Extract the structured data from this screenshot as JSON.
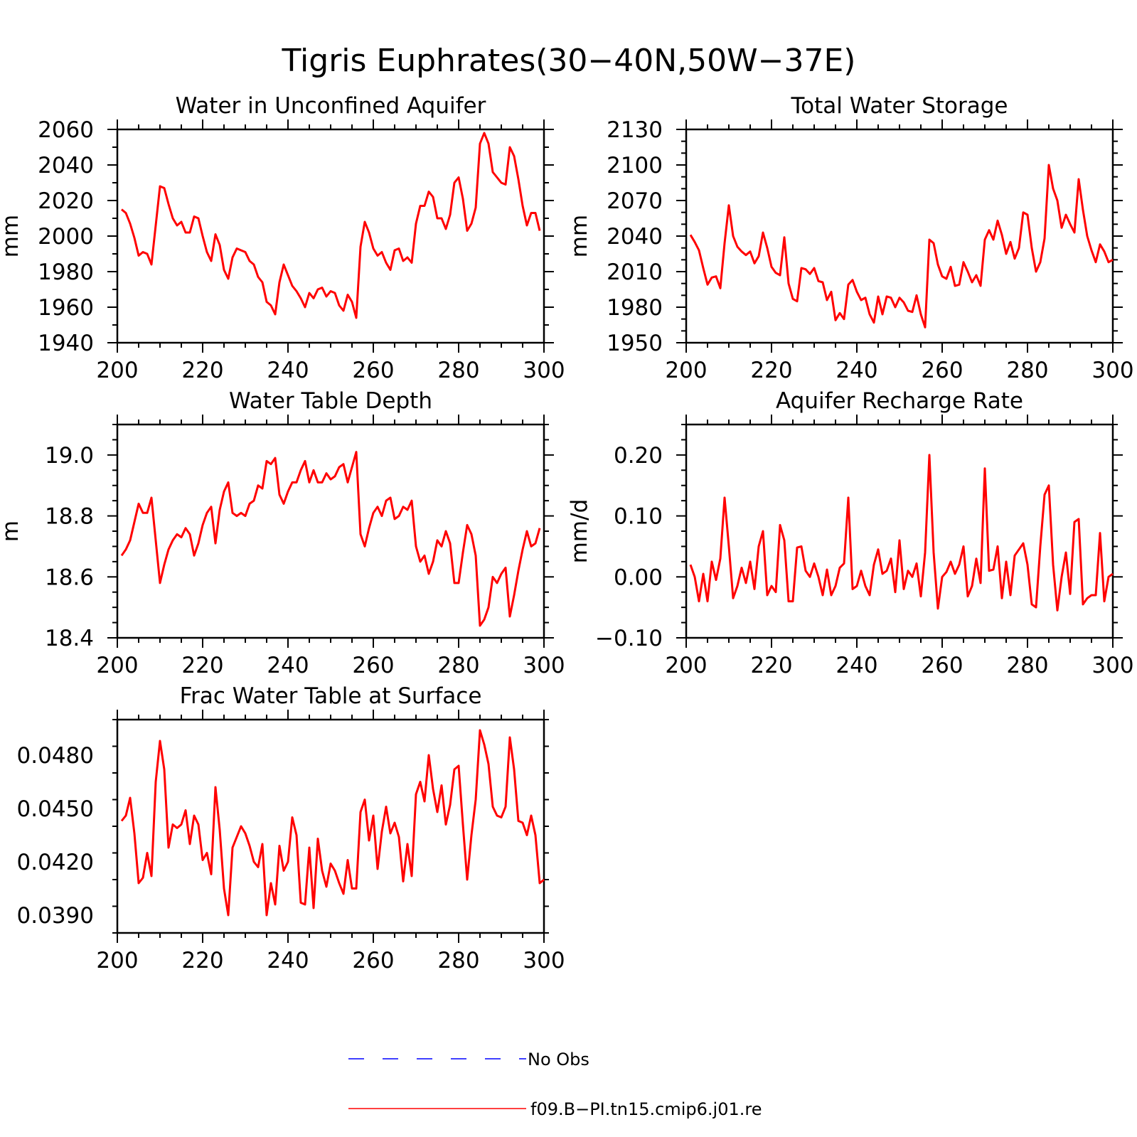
{
  "figure": {
    "title": "Tigris Euphrates(30−40N,50W−37E)",
    "legend": [
      {
        "label": "No Obs",
        "color": "#0000ff",
        "style": "dashed"
      },
      {
        "label": "f09.B−PI.tn15.cmip6.j01.re",
        "color": "#ff0000",
        "style": "solid"
      }
    ]
  },
  "chart_data": [
    {
      "type": "line",
      "title": "Water in Unconfined Aquifer",
      "xlabel": "",
      "ylabel": "mm",
      "xlim": [
        200,
        300
      ],
      "ylim": [
        1940,
        2060
      ],
      "xticks": [
        200,
        220,
        240,
        260,
        280,
        300
      ],
      "xtick_labels": [
        "200",
        "220",
        "240",
        "260",
        "280",
        "300"
      ],
      "yticks": [
        1940,
        1960,
        1980,
        2000,
        2020,
        2040,
        2060
      ],
      "ytick_labels": [
        "1940",
        "1960",
        "1980",
        "2000",
        "2020",
        "2040",
        "2060"
      ],
      "grid": false,
      "series": [
        {
          "name": "f09.B−PI.tn15.cmip6.j01.re",
          "color": "#ff0000",
          "x_start": 201,
          "values": [
            2015,
            2013,
            2007,
            1999,
            1989,
            1991,
            1990,
            1984,
            2006,
            2028,
            2027,
            2018,
            2010,
            2006,
            2008,
            2002,
            2002,
            2011,
            2010,
            2000,
            1991,
            1986,
            2001,
            1995,
            1981,
            1976,
            1988,
            1993,
            1992,
            1991,
            1986,
            1984,
            1977,
            1974,
            1963,
            1961,
            1956,
            1974,
            1984,
            1978,
            1972,
            1969,
            1965,
            1960,
            1968,
            1965,
            1970,
            1971,
            1966,
            1969,
            1968,
            1961,
            1958,
            1967,
            1963,
            1954,
            1994,
            2008,
            2002,
            1993,
            1989,
            1991,
            1985,
            1981,
            1992,
            1993,
            1986,
            1988,
            1985,
            2007,
            2017,
            2017,
            2025,
            2022,
            2010,
            2010,
            2004,
            2012,
            2030,
            2033,
            2021,
            2003,
            2007,
            2016,
            2052,
            2058,
            2052,
            2036,
            2033,
            2030,
            2029,
            2050,
            2045,
            2032,
            2017,
            2006,
            2013,
            2013,
            2003
          ]
        }
      ]
    },
    {
      "type": "line",
      "title": "Total Water Storage",
      "xlabel": "",
      "ylabel": "mm",
      "xlim": [
        200,
        300
      ],
      "ylim": [
        1950,
        2130
      ],
      "xticks": [
        200,
        220,
        240,
        260,
        280,
        300
      ],
      "xtick_labels": [
        "200",
        "220",
        "240",
        "260",
        "280",
        "300"
      ],
      "yticks": [
        1950,
        1980,
        2010,
        2040,
        2070,
        2100,
        2130
      ],
      "ytick_labels": [
        "1950",
        "1980",
        "2010",
        "2040",
        "2070",
        "2100",
        "2130"
      ],
      "grid": false,
      "series": [
        {
          "name": "f09.B−PI.tn15.cmip6.j01.re",
          "color": "#ff0000",
          "x_start": 201,
          "values": [
            2041,
            2035,
            2028,
            2013,
            1999,
            2005,
            2006,
            1996,
            2034,
            2066,
            2040,
            2031,
            2027,
            2024,
            2027,
            2017,
            2023,
            2043,
            2030,
            2014,
            2009,
            2007,
            2039,
            2000,
            1987,
            1985,
            2013,
            2012,
            2008,
            2013,
            2002,
            2001,
            1986,
            1993,
            1969,
            1975,
            1970,
            1999,
            2003,
            1993,
            1986,
            1988,
            1974,
            1967,
            1989,
            1974,
            1989,
            1988,
            1980,
            1988,
            1984,
            1977,
            1976,
            1990,
            1974,
            1963,
            2037,
            2034,
            2016,
            2006,
            2004,
            2014,
            1998,
            1999,
            2018,
            2010,
            2001,
            2007,
            1998,
            2037,
            2045,
            2037,
            2053,
            2041,
            2025,
            2035,
            2021,
            2030,
            2060,
            2058,
            2030,
            2010,
            2018,
            2038,
            2100,
            2080,
            2070,
            2047,
            2058,
            2050,
            2043,
            2088,
            2062,
            2040,
            2028,
            2018,
            2033,
            2027,
            2018,
            2020
          ]
        }
      ]
    },
    {
      "type": "line",
      "title": "Water Table Depth",
      "xlabel": "",
      "ylabel": "m",
      "xlim": [
        200,
        300
      ],
      "ylim": [
        18.4,
        19.1
      ],
      "xticks": [
        200,
        220,
        240,
        260,
        280,
        300
      ],
      "xtick_labels": [
        "200",
        "220",
        "240",
        "260",
        "280",
        "300"
      ],
      "yticks": [
        18.4,
        18.6,
        18.8,
        19.0
      ],
      "ytick_labels": [
        "18.4",
        "18.6",
        "18.8",
        "19.0"
      ],
      "grid": false,
      "series": [
        {
          "name": "f09.B−PI.tn15.cmip6.j01.re",
          "color": "#ff0000",
          "x_start": 201,
          "values": [
            18.67,
            18.69,
            18.72,
            18.78,
            18.84,
            18.81,
            18.81,
            18.86,
            18.72,
            18.58,
            18.64,
            18.69,
            18.72,
            18.74,
            18.73,
            18.76,
            18.74,
            18.67,
            18.71,
            18.77,
            18.81,
            18.83,
            18.71,
            18.82,
            18.88,
            18.91,
            18.81,
            18.8,
            18.81,
            18.8,
            18.84,
            18.85,
            18.9,
            18.89,
            18.98,
            18.97,
            18.99,
            18.87,
            18.84,
            18.88,
            18.91,
            18.91,
            18.95,
            18.98,
            18.91,
            18.95,
            18.91,
            18.91,
            18.94,
            18.92,
            18.93,
            18.96,
            18.97,
            18.91,
            18.96,
            19.01,
            18.74,
            18.7,
            18.76,
            18.81,
            18.83,
            18.8,
            18.85,
            18.86,
            18.79,
            18.8,
            18.83,
            18.82,
            18.85,
            18.7,
            18.65,
            18.67,
            18.61,
            18.65,
            18.72,
            18.7,
            18.75,
            18.71,
            18.58,
            18.58,
            18.68,
            18.77,
            18.74,
            18.67,
            18.44,
            18.46,
            18.5,
            18.6,
            18.58,
            18.61,
            18.63,
            18.47,
            18.54,
            18.62,
            18.69,
            18.75,
            18.7,
            18.71,
            18.76
          ]
        }
      ]
    },
    {
      "type": "line",
      "title": "Aquifer Recharge Rate",
      "xlabel": "",
      "ylabel": "mm/d",
      "xlim": [
        200,
        300
      ],
      "ylim": [
        -0.1,
        0.25
      ],
      "xticks": [
        200,
        220,
        240,
        260,
        280,
        300
      ],
      "xtick_labels": [
        "200",
        "220",
        "240",
        "260",
        "280",
        "300"
      ],
      "yticks": [
        -0.1,
        0.0,
        0.1,
        0.2
      ],
      "ytick_labels": [
        "−0.10",
        "0.00",
        "0.10",
        "0.20"
      ],
      "grid": false,
      "series": [
        {
          "name": "f09.B−PI.tn15.cmip6.j01.re",
          "color": "#ff0000",
          "x_start": 201,
          "values": [
            0.02,
            0.0,
            -0.04,
            0.005,
            -0.04,
            0.025,
            -0.005,
            0.03,
            0.13,
            0.05,
            -0.035,
            -0.015,
            0.015,
            -0.01,
            0.025,
            -0.02,
            0.05,
            0.075,
            -0.03,
            -0.015,
            -0.025,
            0.085,
            0.06,
            -0.04,
            -0.04,
            0.048,
            0.05,
            0.01,
            0.0,
            0.022,
            0.0,
            -0.03,
            0.012,
            -0.03,
            -0.015,
            0.015,
            0.022,
            0.13,
            -0.02,
            -0.015,
            0.01,
            -0.015,
            -0.03,
            0.02,
            0.045,
            0.005,
            0.01,
            0.03,
            -0.025,
            0.06,
            -0.02,
            0.01,
            0.0,
            0.022,
            -0.032,
            0.04,
            0.2,
            0.04,
            -0.052,
            0.0,
            0.008,
            0.025,
            0.005,
            0.02,
            0.05,
            -0.032,
            -0.015,
            0.03,
            -0.01,
            0.178,
            0.01,
            0.012,
            0.05,
            -0.035,
            0.025,
            -0.03,
            0.035,
            0.045,
            0.055,
            0.02,
            -0.045,
            -0.05,
            0.05,
            0.135,
            0.15,
            0.02,
            -0.055,
            0.0,
            0.04,
            -0.028,
            0.09,
            0.095,
            -0.045,
            -0.035,
            -0.03,
            -0.03,
            0.072,
            -0.04,
            0.0,
            0.005
          ]
        }
      ]
    },
    {
      "type": "line",
      "title": "Frac Water Table at Surface",
      "xlabel": "",
      "ylabel": "",
      "xlim": [
        200,
        300
      ],
      "ylim": [
        0.038,
        0.05
      ],
      "xticks": [
        200,
        220,
        240,
        260,
        280,
        300
      ],
      "xtick_labels": [
        "200",
        "220",
        "240",
        "260",
        "280",
        "300"
      ],
      "yticks": [
        0.039,
        0.042,
        0.045,
        0.048
      ],
      "ytick_labels": [
        "0.0390",
        "0.0420",
        "0.0450",
        "0.0480"
      ],
      "grid": false,
      "series": [
        {
          "name": "f09.B−PI.tn15.cmip6.j01.re",
          "color": "#ff0000",
          "x_start": 201,
          "values": [
            0.0443,
            0.0446,
            0.0456,
            0.0436,
            0.0408,
            0.0411,
            0.0425,
            0.0412,
            0.0465,
            0.0488,
            0.0472,
            0.0428,
            0.0441,
            0.0439,
            0.0441,
            0.0449,
            0.043,
            0.0446,
            0.0441,
            0.0421,
            0.0425,
            0.0413,
            0.0462,
            0.0438,
            0.0405,
            0.039,
            0.0428,
            0.0434,
            0.044,
            0.0436,
            0.0429,
            0.042,
            0.0417,
            0.043,
            0.039,
            0.0408,
            0.0396,
            0.0429,
            0.0415,
            0.042,
            0.0445,
            0.0435,
            0.0397,
            0.0396,
            0.0428,
            0.0394,
            0.0433,
            0.0415,
            0.0406,
            0.0419,
            0.0415,
            0.0408,
            0.0402,
            0.0421,
            0.0405,
            0.0405,
            0.0448,
            0.0455,
            0.0432,
            0.0446,
            0.0416,
            0.0437,
            0.0451,
            0.0436,
            0.0442,
            0.0434,
            0.0409,
            0.043,
            0.0412,
            0.0458,
            0.0465,
            0.0454,
            0.048,
            0.0461,
            0.0448,
            0.0463,
            0.0441,
            0.0452,
            0.0472,
            0.0474,
            0.0441,
            0.041,
            0.0435,
            0.0455,
            0.0494,
            0.0486,
            0.0475,
            0.0451,
            0.0446,
            0.0445,
            0.0451,
            0.049,
            0.0472,
            0.0443,
            0.0442,
            0.0435,
            0.0446,
            0.0435,
            0.0408,
            0.041
          ]
        }
      ]
    }
  ]
}
